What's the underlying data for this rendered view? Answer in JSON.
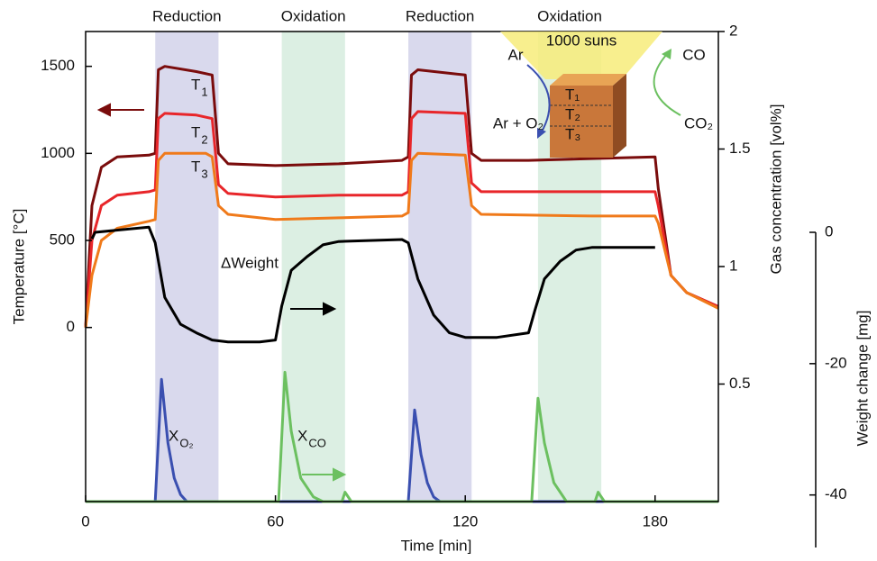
{
  "chart_data": {
    "type": "line",
    "xlabel": "Time [min]",
    "ylabel": "Temperature [°C]",
    "y2label": "Gas concentration [vol%]",
    "y3label": "Weight change [mg]",
    "xlim": [
      0,
      200
    ],
    "xticks": [
      0,
      60,
      120,
      180
    ],
    "ylim": [
      -1000,
      1700
    ],
    "yticks": [
      0,
      500,
      1000,
      1500
    ],
    "y2lim": [
      0,
      2
    ],
    "y2ticks": [
      0.5,
      1,
      1.5,
      2
    ],
    "y3lim": [
      -48,
      0
    ],
    "y3ticks": [
      0,
      -20,
      -40
    ],
    "regions": [
      {
        "label": "Reduction",
        "start": 22,
        "end": 42,
        "color": "#d9d9ed"
      },
      {
        "label": "Oxidation",
        "start": 62,
        "end": 82,
        "color": "#dcefe3"
      },
      {
        "label": "Reduction",
        "start": 102,
        "end": 122,
        "color": "#d9d9ed"
      },
      {
        "label": "Oxidation",
        "start": 143,
        "end": 163,
        "color": "#dcefe3"
      }
    ],
    "series": [
      {
        "name": "T",
        "subscript": "1",
        "color": "#7a0c0c",
        "axis": "y",
        "x": [
          0,
          2,
          5,
          10,
          20,
          22,
          23,
          25,
          35,
          40,
          42,
          45,
          60,
          80,
          100,
          102,
          103,
          105,
          120,
          122,
          125,
          140,
          160,
          180,
          181,
          185,
          190,
          200
        ],
        "values": [
          0,
          700,
          920,
          980,
          990,
          1000,
          1480,
          1500,
          1470,
          1450,
          1000,
          940,
          930,
          940,
          960,
          980,
          1450,
          1480,
          1450,
          1000,
          960,
          960,
          970,
          980,
          800,
          300,
          200,
          120
        ]
      },
      {
        "name": "T",
        "subscript": "2",
        "color": "#e8262a",
        "axis": "y",
        "x": [
          0,
          2,
          5,
          10,
          20,
          22,
          23,
          25,
          35,
          40,
          42,
          45,
          60,
          80,
          100,
          102,
          103,
          105,
          120,
          122,
          125,
          160,
          180,
          181,
          185,
          190,
          200
        ],
        "values": [
          0,
          500,
          700,
          760,
          780,
          790,
          1200,
          1230,
          1220,
          1200,
          820,
          770,
          750,
          760,
          760,
          780,
          1200,
          1240,
          1230,
          830,
          780,
          780,
          780,
          700,
          300,
          200,
          120
        ]
      },
      {
        "name": "T",
        "subscript": "3",
        "color": "#f07a1a",
        "axis": "y",
        "x": [
          0,
          2,
          5,
          10,
          20,
          22,
          23,
          25,
          38,
          40,
          42,
          45,
          60,
          80,
          100,
          102,
          103,
          105,
          120,
          122,
          125,
          160,
          180,
          181,
          185,
          190,
          200
        ],
        "values": [
          0,
          300,
          500,
          570,
          610,
          620,
          960,
          1000,
          1000,
          980,
          700,
          650,
          620,
          630,
          640,
          660,
          960,
          1000,
          990,
          700,
          650,
          640,
          640,
          600,
          300,
          200,
          110
        ]
      },
      {
        "name": "ΔWeight",
        "color": "#000000",
        "axis": "y3",
        "x": [
          2,
          3,
          20,
          22,
          25,
          30,
          35,
          40,
          45,
          55,
          60,
          62,
          65,
          70,
          75,
          80,
          100,
          102,
          105,
          110,
          115,
          120,
          130,
          140,
          142,
          145,
          150,
          155,
          160,
          170,
          180
        ],
        "values": [
          -1.0,
          0,
          0.8,
          -1.6,
          -9.9,
          -14.0,
          -15.3,
          -16.4,
          -16.7,
          -16.7,
          -16.4,
          -11.2,
          -5.8,
          -3.7,
          -1.9,
          -1.4,
          -1.1,
          -1.6,
          -7.1,
          -12.6,
          -15.3,
          -16.0,
          -16.0,
          -15.3,
          -11.9,
          -7.1,
          -4.4,
          -2.7,
          -2.3,
          -2.3,
          -2.3
        ]
      },
      {
        "name": "X",
        "subscript": "O₂",
        "color": "#3a4fb0",
        "axis": "y2",
        "x": [
          0,
          22,
          24,
          26,
          28,
          30,
          32,
          102,
          104,
          106,
          108,
          110,
          112,
          200
        ],
        "values": [
          0,
          0,
          0.52,
          0.25,
          0.1,
          0.03,
          0,
          0,
          0.39,
          0.2,
          0.08,
          0.02,
          0,
          0
        ]
      },
      {
        "name": "X",
        "subscript": "CO",
        "color": "#6cc060",
        "axis": "y2",
        "x": [
          0,
          61,
          63,
          65,
          68,
          72,
          75,
          81,
          82,
          84,
          141,
          143,
          145,
          148,
          152,
          161,
          162,
          164,
          200
        ],
        "values": [
          0,
          0,
          0.55,
          0.3,
          0.1,
          0.02,
          0,
          0,
          0.04,
          0,
          0,
          0.44,
          0.25,
          0.08,
          0,
          0,
          0.04,
          0,
          0
        ]
      }
    ],
    "inset": {
      "light": "1000 suns",
      "gas_in": "Ar",
      "gas_out": "Ar + O₂",
      "co": "CO",
      "co2": "CO₂",
      "layers": [
        "T₁",
        "T₂",
        "T₃"
      ]
    }
  }
}
